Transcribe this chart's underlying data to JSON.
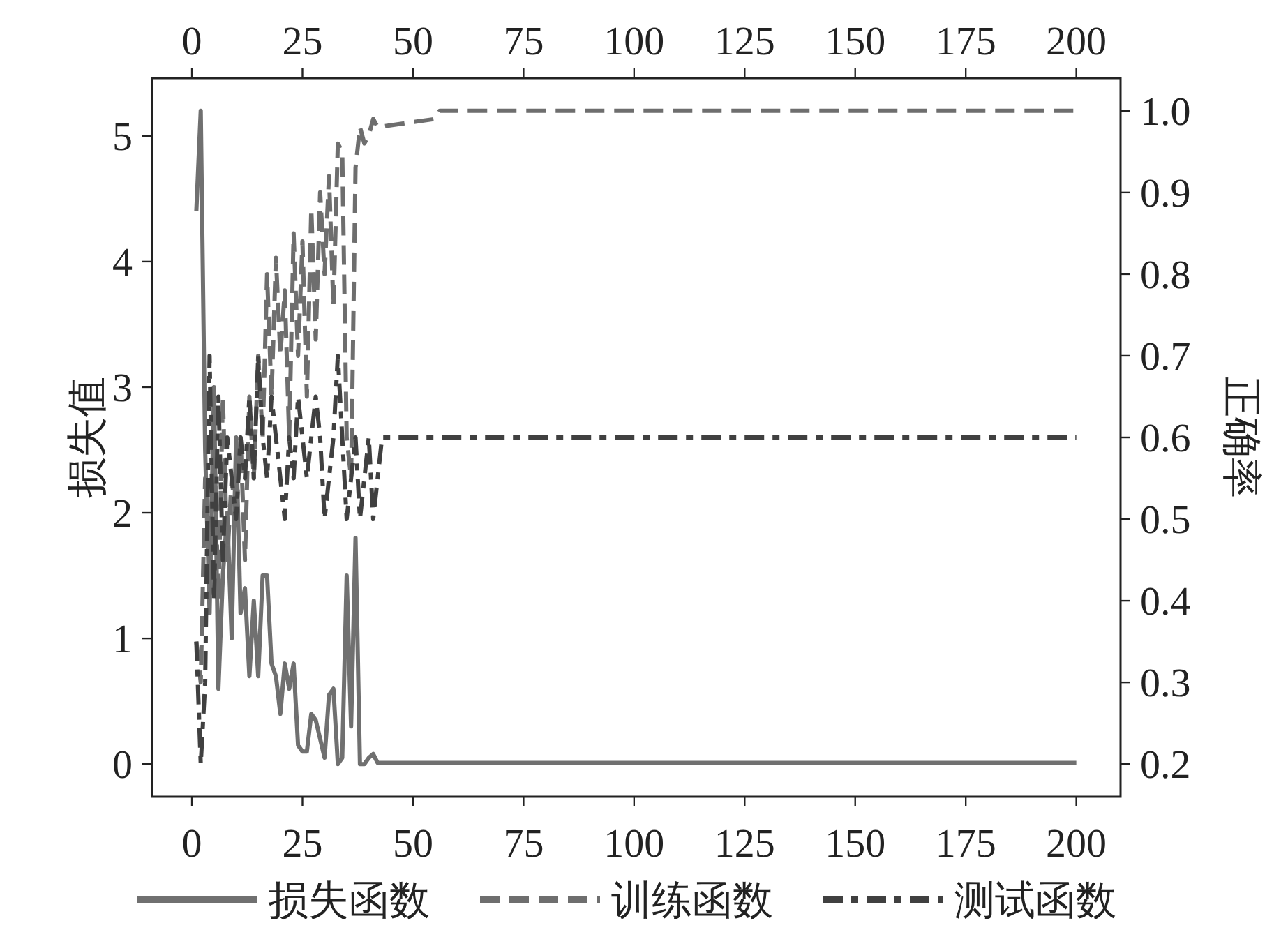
{
  "chart_data": {
    "type": "line",
    "ylabel": "损失值",
    "y2label": "正确率",
    "xlim": [
      -9,
      210
    ],
    "xticks": [
      0,
      25,
      50,
      75,
      100,
      125,
      150,
      175,
      200
    ],
    "x2lim": [
      -9,
      210
    ],
    "x2ticks": [
      0,
      25,
      50,
      75,
      100,
      125,
      150,
      175,
      200
    ],
    "ylim": [
      -0.26,
      5.46
    ],
    "yticks": [
      0,
      1,
      2,
      3,
      4,
      5
    ],
    "y2lim": [
      0.16,
      1.04
    ],
    "y2ticks": [
      {
        "value": 0.2,
        "label": "0.2"
      },
      {
        "value": 0.3,
        "label": "0.3"
      },
      {
        "value": 0.4,
        "label": "0.4"
      },
      {
        "value": 0.5,
        "label": "0.5"
      },
      {
        "value": 0.6,
        "label": "0.6"
      },
      {
        "value": 0.7,
        "label": "0.7"
      },
      {
        "value": 0.8,
        "label": "0.8"
      },
      {
        "value": 0.9,
        "label": "0.9"
      },
      {
        "value": 1.0,
        "label": "1.0"
      }
    ],
    "grid": false,
    "legend": "bottom",
    "series": [
      {
        "name": "损失函数",
        "color": "#707070",
        "line_style": "solid",
        "x": [
          1,
          2,
          3,
          4,
          5,
          6,
          7,
          8,
          9,
          10,
          11,
          12,
          13,
          14,
          15,
          16,
          17,
          18,
          19,
          20,
          21,
          22,
          23,
          24,
          25,
          26,
          27,
          28,
          29,
          30,
          31,
          32,
          33,
          34,
          35,
          36,
          37,
          38,
          39,
          40,
          41,
          42,
          200
        ],
        "values": [
          4.4,
          5.2,
          2.5,
          1.2,
          3.0,
          0.6,
          1.5,
          2.0,
          1.0,
          2.6,
          1.2,
          1.4,
          0.7,
          1.3,
          0.7,
          1.5,
          1.5,
          0.8,
          0.7,
          0.4,
          0.8,
          0.6,
          0.8,
          0.15,
          0.1,
          0.1,
          0.4,
          0.35,
          0.2,
          0.05,
          0.55,
          0.6,
          0.0,
          0.05,
          1.5,
          0.3,
          1.8,
          0.0,
          0.0,
          0.05,
          0.08,
          0.01,
          0.01
        ]
      },
      {
        "name": "训练函数",
        "color": "#6e6e6e",
        "line_style": "dashed",
        "axis": "y2",
        "x": [
          1,
          2,
          3,
          4,
          5,
          6,
          7,
          8,
          9,
          10,
          11,
          12,
          13,
          14,
          15,
          16,
          17,
          18,
          19,
          20,
          21,
          22,
          23,
          24,
          25,
          26,
          27,
          28,
          29,
          30,
          31,
          32,
          33,
          34,
          35,
          36,
          37,
          38,
          39,
          40,
          41,
          42,
          55,
          56,
          200
        ],
        "values": [
          0.35,
          0.3,
          0.55,
          0.45,
          0.6,
          0.4,
          0.65,
          0.45,
          0.55,
          0.5,
          0.6,
          0.45,
          0.65,
          0.55,
          0.7,
          0.6,
          0.8,
          0.65,
          0.82,
          0.7,
          0.78,
          0.6,
          0.85,
          0.7,
          0.84,
          0.65,
          0.88,
          0.72,
          0.9,
          0.8,
          0.92,
          0.76,
          0.96,
          0.95,
          0.6,
          0.55,
          0.93,
          0.98,
          0.96,
          0.97,
          0.99,
          0.98,
          0.99,
          1.0,
          1.0
        ]
      },
      {
        "name": "测试函数",
        "color": "#404040",
        "line_style": "dashdot",
        "axis": "y2",
        "x": [
          1,
          2,
          3,
          4,
          5,
          6,
          7,
          8,
          9,
          10,
          11,
          12,
          13,
          14,
          15,
          16,
          17,
          18,
          19,
          20,
          21,
          22,
          23,
          24,
          25,
          26,
          27,
          28,
          29,
          30,
          31,
          32,
          33,
          34,
          35,
          36,
          37,
          38,
          39,
          40,
          41,
          42,
          43,
          200
        ],
        "values": [
          0.35,
          0.2,
          0.3,
          0.7,
          0.4,
          0.65,
          0.45,
          0.6,
          0.55,
          0.5,
          0.6,
          0.55,
          0.65,
          0.55,
          0.7,
          0.6,
          0.55,
          0.65,
          0.6,
          0.55,
          0.5,
          0.6,
          0.55,
          0.65,
          0.6,
          0.55,
          0.6,
          0.65,
          0.6,
          0.5,
          0.55,
          0.6,
          0.7,
          0.6,
          0.5,
          0.55,
          0.6,
          0.5,
          0.55,
          0.6,
          0.5,
          0.55,
          0.6,
          0.6
        ]
      }
    ]
  }
}
